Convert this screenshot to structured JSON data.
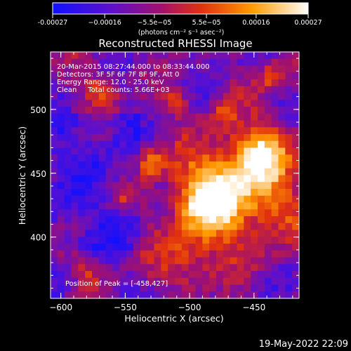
{
  "chart_data": {
    "type": "heatmap",
    "title": "Reconstructed RHESSI Image",
    "xlabel": "Heliocentric X (arcsec)",
    "ylabel": "Heliocentric Y (arcsec)",
    "xlim": [
      -608,
      -415
    ],
    "ylim": [
      352,
      545
    ],
    "xticks": [
      -600,
      -550,
      -500,
      -450
    ],
    "xtick_labels": [
      "−600",
      "−550",
      "−500",
      "−450"
    ],
    "yticks": [
      400,
      450,
      500
    ],
    "ytick_labels": [
      "400",
      "450",
      "500"
    ],
    "annotations": [
      "20-Mar-2015 08:27:44.000 to 08:33:44.000",
      "Detectors: 3F 5F 6F 7F 8F 9F, Att 0",
      "Energy Range: 12.0 - 25.0 keV",
      "Clean     Total counts: 5.66E+03"
    ],
    "peak_label": "Position of Peak = [-458,427]",
    "peak": [
      -458,
      427
    ],
    "colorbar": {
      "range": [
        -0.00027,
        0.00027
      ],
      "tick_values": [
        -0.00027,
        -0.00016,
        -5.5e-05,
        5.5e-05,
        0.00016,
        0.00027
      ],
      "tick_labels": [
        "-0.00027",
        "−0.00016",
        "−5.5e−05",
        "5.5e−05",
        "0.00016",
        "0.00027"
      ],
      "units": "(photons cm⁻² s⁻¹ asec⁻²)",
      "colors": [
        "#1010ff",
        "#6a0dad",
        "#c01040",
        "#ff5000",
        "#ffb000",
        "#ffffff"
      ]
    }
  },
  "footer": {
    "timestamp": "19-May-2022 22:09"
  }
}
